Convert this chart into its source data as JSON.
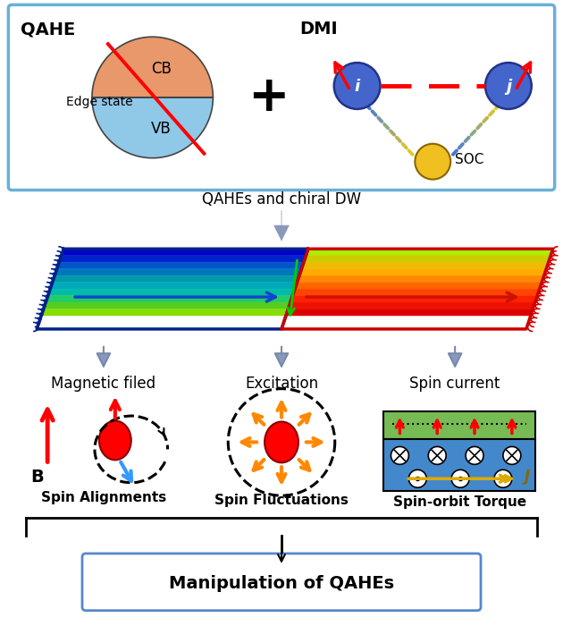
{
  "title": "Manipulation of QAHEs",
  "qahe_label": "QAHE",
  "dmi_label": "DMI",
  "cb_label": "CB",
  "vb_label": "VB",
  "edge_state_label": "Edge state",
  "soc_label": "SOC",
  "i_label": "i",
  "j_label": "j",
  "plus_sign": "+",
  "arrow_text": "QAHEs and chiral DW",
  "mag_label": "Magnetic filed",
  "exc_label": "Excitation",
  "spin_label": "Spin current",
  "spin_align": "Spin Alignments",
  "spin_fluct": "Spin Fluctuations",
  "spin_orbit": "Spin-orbit Torque",
  "B_label": "B",
  "cb_color": "#e8986a",
  "vb_color": "#90c8e8",
  "i_j_color": "#4466cc",
  "yellow_color": "#f0c020",
  "red_color": "#dd0000",
  "blue_color": "#3399ff",
  "orange_color": "#ff8800",
  "green_color": "#66aa44",
  "skyblue_color": "#4488cc",
  "strip_left_colors": [
    "#0000cc",
    "#0022cc",
    "#0055cc",
    "#0077bb",
    "#0099aa",
    "#00aabb",
    "#00bbaa",
    "#22cc66",
    "#55cc22",
    "#88dd00"
  ],
  "strip_right_colors": [
    "#aaee00",
    "#cccc00",
    "#eebb00",
    "#ffaa00",
    "#ff8800",
    "#ff6600",
    "#ff4400",
    "#ff2200",
    "#ee1100",
    "#dd0000"
  ],
  "border_left": "#002288",
  "border_right": "#cc0000",
  "box_edge": "#6ab0d8"
}
